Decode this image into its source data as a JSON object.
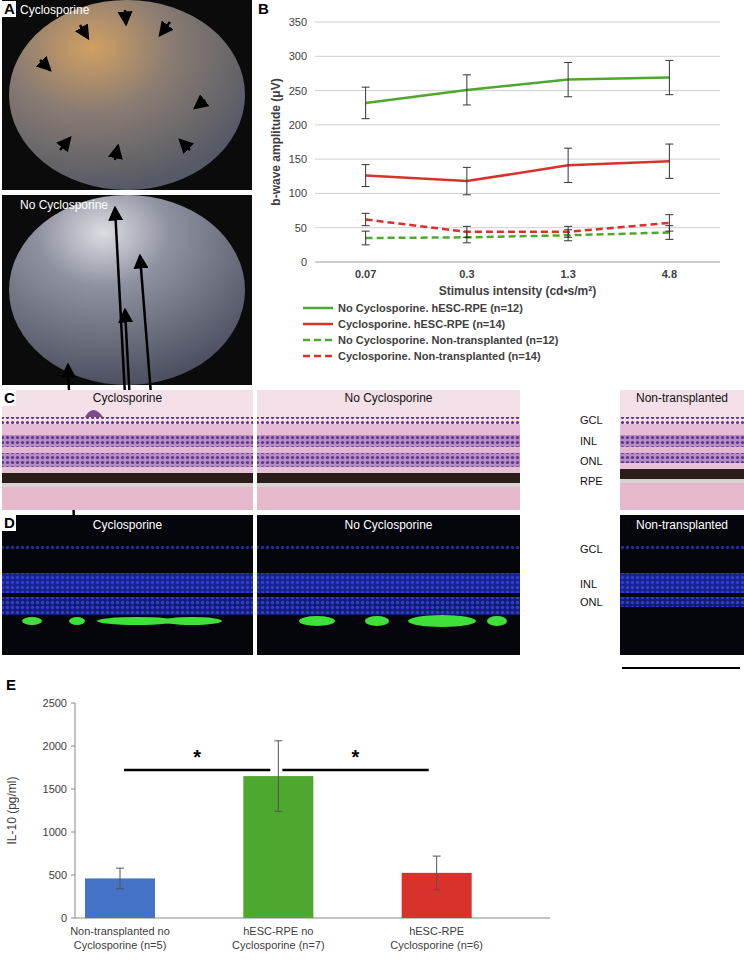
{
  "panel_letters": [
    "A",
    "B",
    "C",
    "D",
    "E"
  ],
  "panel_a": {
    "labels": [
      "Cyclosporine",
      "No Cyclosporine"
    ]
  },
  "panel_c": {
    "labels": [
      "Cyclosporine",
      "No Cyclosporine",
      "Non-transplanted"
    ],
    "layers": [
      "GCL",
      "INL",
      "ONL",
      "RPE"
    ]
  },
  "panel_d": {
    "labels": [
      "Cyclosporine",
      "No Cyclosporine",
      "Non-transplanted"
    ],
    "layers": [
      "GCL",
      "INL",
      "ONL"
    ]
  },
  "chart_data": [
    {
      "type": "line",
      "y_label": "b-wave amplitude (μV)",
      "x_label": "Stimulus intensity (cd•s/m²)",
      "categories": [
        "0.07",
        "0.3",
        "1.3",
        "4.8"
      ],
      "ylim": [
        0,
        350
      ],
      "yticks": [
        0,
        50,
        100,
        150,
        200,
        250,
        300,
        350
      ],
      "grid": true,
      "legend": "bottom",
      "series": [
        {
          "name": "No Cyclosporine. hESC-RPE (n=12)",
          "color": "#4ea72e",
          "line_style": "solid",
          "values": [
            232,
            251,
            266,
            269
          ],
          "errors": [
            23,
            22,
            25,
            25
          ]
        },
        {
          "name": "Cyclosporine. hESC-RPE (n=14)",
          "color": "#d9312b",
          "line_style": "solid",
          "values": [
            126,
            118,
            141,
            147
          ],
          "errors": [
            16,
            20,
            25,
            25
          ]
        },
        {
          "name": "No Cyclosporine. Non-transplanted (n=12)",
          "color": "#4ea72e",
          "line_style": "dashed",
          "values": [
            35,
            36,
            39,
            43
          ],
          "errors": [
            10,
            8,
            8,
            10
          ]
        },
        {
          "name": "Cyclosporine. Non-transplanted (n=14)",
          "color": "#d9312b",
          "line_style": "dashed",
          "values": [
            62,
            44,
            44,
            57
          ],
          "errors": [
            9,
            8,
            8,
            12
          ]
        }
      ]
    },
    {
      "type": "bar",
      "y_label": "IL-10 (pg/ml)",
      "categories": [
        "Non-transplanted no\nCyclosporine (n=5)",
        "hESC-RPE no\nCyclosporine (n=7)",
        "hESC-RPE\nCyclosporine (n=6)"
      ],
      "values": [
        460,
        1650,
        525
      ],
      "errors": [
        120,
        410,
        195
      ],
      "colors": [
        "#4472c4",
        "#4ea72e",
        "#d9312b"
      ],
      "ylim": [
        0,
        2500
      ],
      "yticks": [
        0,
        500,
        1000,
        1500,
        2000,
        2500
      ],
      "grid": false,
      "annotations": [
        {
          "text": "*",
          "between": [
            0,
            1
          ]
        },
        {
          "text": "*",
          "between": [
            1,
            2
          ]
        }
      ]
    }
  ]
}
